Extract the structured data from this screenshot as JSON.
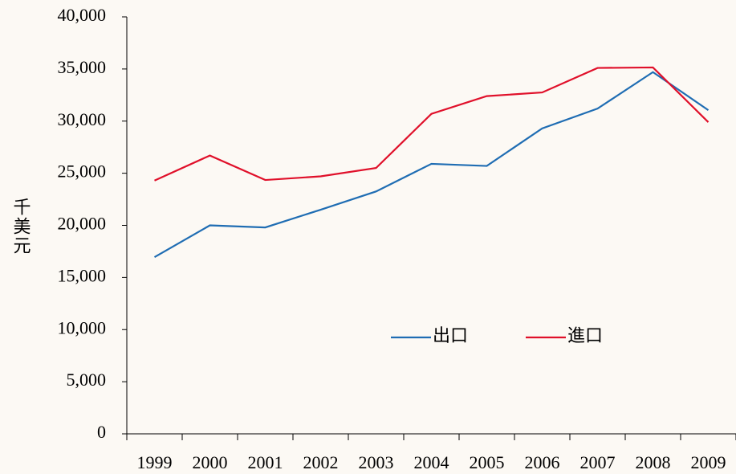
{
  "chart_data": {
    "type": "line",
    "y_label": "千美元",
    "categories": [
      "1999",
      "2000",
      "2001",
      "2002",
      "2003",
      "2004",
      "2005",
      "2006",
      "2007",
      "2008",
      "2009"
    ],
    "series": [
      {
        "name": "出口",
        "color": "#1f6db3",
        "values": [
          16950,
          20000,
          19800,
          21500,
          23250,
          25900,
          25700,
          29300,
          31200,
          34700,
          31050
        ]
      },
      {
        "name": "進口",
        "color": "#e0102a",
        "values": [
          24300,
          26700,
          24350,
          24700,
          25500,
          30700,
          32400,
          32750,
          35100,
          35150,
          29900
        ]
      }
    ],
    "ylim": [
      0,
      40000
    ],
    "yticks": [
      0,
      {
        "value": 5000,
        "label": "5,000"
      },
      {
        "value": 10000,
        "label": "10,000"
      },
      {
        "value": 15000,
        "label": "15,000"
      },
      {
        "value": 20000,
        "label": "20,000"
      },
      {
        "value": 25000,
        "label": "25,000"
      },
      {
        "value": 30000,
        "label": "30,000"
      },
      {
        "value": 35000,
        "label": "35,000"
      },
      {
        "value": 40000,
        "label": "40,000"
      }
    ],
    "grid": false,
    "legend": "inside-bottom-right"
  }
}
